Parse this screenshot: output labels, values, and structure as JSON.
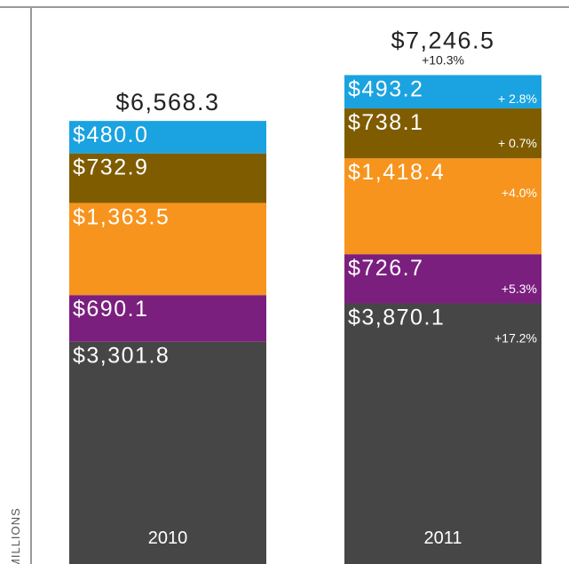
{
  "chart_data": {
    "type": "stacked_bar",
    "axis_label": "MILLIONS",
    "categories": [
      "2010",
      "2011"
    ],
    "totals": [
      6568.3,
      7246.5
    ],
    "total_labels": [
      "$6,568.3",
      "$7,246.5"
    ],
    "total_change_labels": [
      null,
      "+10.3%"
    ],
    "series": [
      {
        "color": "#464646",
        "values": [
          3301.8,
          3870.1
        ],
        "value_labels": [
          "$3,301.8",
          "$3,870.1"
        ],
        "change_labels": [
          null,
          "+17.2%"
        ]
      },
      {
        "color": "#7b1f7f",
        "values": [
          690.1,
          726.7
        ],
        "value_labels": [
          "$690.1",
          "$726.7"
        ],
        "change_labels": [
          null,
          "+5.3%"
        ]
      },
      {
        "color": "#f7941d",
        "values": [
          1363.5,
          1418.4
        ],
        "value_labels": [
          "$1,363.5",
          "$1,418.4"
        ],
        "change_labels": [
          null,
          "+4.0%"
        ]
      },
      {
        "color": "#7f5c00",
        "values": [
          732.9,
          738.1
        ],
        "value_labels": [
          "$732.9",
          "$738.1"
        ],
        "change_labels": [
          null,
          "+ 0.7%"
        ]
      },
      {
        "color": "#1aa3e0",
        "values": [
          480.0,
          493.2
        ],
        "value_labels": [
          "$480.0",
          "$493.2"
        ],
        "change_labels": [
          null,
          "+ 2.8%"
        ]
      }
    ]
  }
}
